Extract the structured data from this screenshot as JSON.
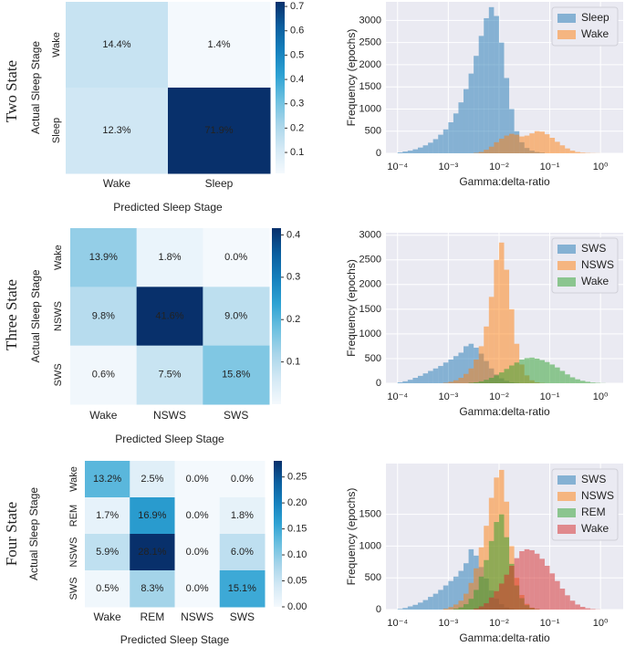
{
  "row_labels": [
    "Two State",
    "Three State",
    "Four State"
  ],
  "chart_data": [
    {
      "type": "heatmap",
      "xlabel": "Predicted Sleep Stage",
      "ylabel": "Actual Sleep Stage",
      "x_categories": [
        "Wake",
        "Sleep"
      ],
      "y_categories": [
        "Wake",
        "Sleep"
      ],
      "values": [
        [
          0.144,
          0.014
        ],
        [
          0.123,
          0.719
        ]
      ],
      "value_labels": [
        [
          "14.4%",
          "1.4%"
        ],
        [
          "12.3%",
          "71.9%"
        ]
      ],
      "clim": [
        0.014,
        0.719
      ],
      "cticks": [
        0.1,
        0.2,
        0.3,
        0.4,
        0.5,
        0.6,
        0.7
      ],
      "colormap": [
        "#f4f9fd",
        "#d4e9f5",
        "#a8d5ea",
        "#6cc0e0",
        "#2ea2d3",
        "#1580bd",
        "#0b5e9e",
        "#08306b"
      ]
    },
    {
      "type": "histogram",
      "xlabel": "Gamma:delta-ratio",
      "ylabel": "Frequency (epochs)",
      "xscale": "log",
      "grid": true,
      "legend": "upper right",
      "bins": [
        0.0001,
        0.0001259,
        0.0001585,
        0.0001995,
        0.0002512,
        0.0003162,
        0.0003981,
        0.0005012,
        0.000631,
        0.0007943,
        0.001,
        0.001259,
        0.001585,
        0.001995,
        0.002512,
        0.003162,
        0.003981,
        0.005012,
        0.00631,
        0.007943,
        0.01,
        0.01259,
        0.01585,
        0.01995,
        0.02512,
        0.03162,
        0.03981,
        0.05012,
        0.0631,
        0.07943,
        0.1,
        0.1259,
        0.1585,
        0.1995,
        0.2512,
        0.3162,
        0.3981,
        0.5012,
        0.631,
        0.7943,
        1,
        1.259
      ],
      "series": [
        {
          "name": "Sleep",
          "color": "#1f77b4",
          "values": [
            20,
            40,
            60,
            90,
            130,
            180,
            240,
            320,
            420,
            540,
            700,
            900,
            1150,
            1450,
            1800,
            2200,
            2650,
            3050,
            3300,
            3100,
            2500,
            1700,
            1000,
            500,
            250,
            120,
            60,
            30,
            15,
            0,
            0,
            0,
            0,
            0,
            0,
            0,
            0,
            0,
            0,
            0,
            0
          ]
        },
        {
          "name": "Wake",
          "color": "#ff7f0e",
          "values": [
            0,
            0,
            0,
            0,
            0,
            0,
            0,
            0,
            0,
            0,
            0,
            0,
            0,
            0,
            0,
            10,
            30,
            80,
            150,
            250,
            330,
            400,
            440,
            420,
            380,
            400,
            450,
            500,
            490,
            430,
            350,
            260,
            180,
            110,
            60,
            30,
            15,
            8,
            4,
            2,
            0
          ]
        }
      ],
      "xlim": [
        5.9e-05,
        2.8
      ],
      "xticks": [
        {
          "value": 0.0001,
          "label": "10⁻⁴"
        },
        {
          "value": 0.001,
          "label": "10⁻³"
        },
        {
          "value": 0.01,
          "label": "10⁻²"
        },
        {
          "value": 0.1,
          "label": "10⁻¹"
        },
        {
          "value": 1,
          "label": "10⁰"
        }
      ],
      "ylim": [
        0,
        3420
      ],
      "yticks": [
        0,
        500,
        1000,
        1500,
        2000,
        2500,
        3000
      ]
    },
    {
      "type": "heatmap",
      "xlabel": "Predicted Sleep Stage",
      "ylabel": "Actual Sleep Stage",
      "x_categories": [
        "Wake",
        "NSWS",
        "SWS"
      ],
      "y_categories": [
        "Wake",
        "NSWS",
        "SWS"
      ],
      "values": [
        [
          0.139,
          0.018,
          0.0
        ],
        [
          0.098,
          0.416,
          0.09
        ],
        [
          0.006,
          0.075,
          0.158
        ]
      ],
      "value_labels": [
        [
          "13.9%",
          "1.8%",
          "0.0%"
        ],
        [
          "9.8%",
          "41.6%",
          "9.0%"
        ],
        [
          "0.6%",
          "7.5%",
          "15.8%"
        ]
      ],
      "clim": [
        0,
        0.416
      ],
      "cticks": [
        0.1,
        0.2,
        0.3,
        0.4
      ],
      "colormap": [
        "#f4f9fd",
        "#d4e9f5",
        "#a8d5ea",
        "#6cc0e0",
        "#2ea2d3",
        "#1580bd",
        "#0b5e9e",
        "#08306b"
      ]
    },
    {
      "type": "histogram",
      "xlabel": "Gamma:delta-ratio",
      "ylabel": "Frequency (epochs)",
      "xscale": "log",
      "grid": true,
      "legend": "upper right",
      "bins": [
        0.0001,
        0.0001259,
        0.0001585,
        0.0001995,
        0.0002512,
        0.0003162,
        0.0003981,
        0.0005012,
        0.000631,
        0.0007943,
        0.001,
        0.001259,
        0.001585,
        0.001995,
        0.002512,
        0.003162,
        0.003981,
        0.005012,
        0.00631,
        0.007943,
        0.01,
        0.01259,
        0.01585,
        0.01995,
        0.02512,
        0.03162,
        0.03981,
        0.05012,
        0.0631,
        0.07943,
        0.1,
        0.1259,
        0.1585,
        0.1995,
        0.2512,
        0.3162,
        0.3981,
        0.5012,
        0.631,
        0.7943,
        1,
        1.259
      ],
      "series": [
        {
          "name": "SWS",
          "color": "#1f77b4",
          "values": [
            20,
            40,
            70,
            110,
            150,
            200,
            250,
            300,
            350,
            420,
            480,
            550,
            620,
            750,
            800,
            720,
            600,
            450,
            300,
            180,
            100,
            50,
            20,
            8,
            0,
            0,
            0,
            0,
            0,
            0,
            0,
            0,
            0,
            0,
            0,
            0,
            0,
            0,
            0,
            0,
            0
          ]
        },
        {
          "name": "NSWS",
          "color": "#ff7f0e",
          "values": [
            0,
            0,
            0,
            0,
            0,
            0,
            0,
            0,
            0,
            10,
            30,
            60,
            110,
            190,
            300,
            480,
            750,
            1150,
            1750,
            2500,
            2850,
            2300,
            1500,
            800,
            380,
            160,
            60,
            20,
            5,
            0,
            0,
            0,
            0,
            0,
            0,
            0,
            0,
            0,
            0,
            0,
            0
          ]
        },
        {
          "name": "Wake",
          "color": "#2ca02c",
          "values": [
            0,
            0,
            0,
            0,
            0,
            0,
            0,
            0,
            0,
            0,
            0,
            0,
            0,
            0,
            10,
            20,
            40,
            70,
            110,
            160,
            220,
            290,
            360,
            420,
            480,
            510,
            520,
            500,
            470,
            430,
            380,
            320,
            250,
            180,
            120,
            80,
            50,
            30,
            15,
            8,
            3
          ]
        }
      ],
      "xlim": [
        5.9e-05,
        2.8
      ],
      "xticks": [
        {
          "value": 0.0001,
          "label": "10⁻⁴"
        },
        {
          "value": 0.001,
          "label": "10⁻³"
        },
        {
          "value": 0.01,
          "label": "10⁻²"
        },
        {
          "value": 0.1,
          "label": "10⁻¹"
        },
        {
          "value": 1,
          "label": "10⁰"
        }
      ],
      "ylim": [
        0,
        3050
      ],
      "yticks": [
        0,
        500,
        1000,
        1500,
        2000,
        2500,
        3000
      ]
    },
    {
      "type": "heatmap",
      "xlabel": "Predicted Sleep Stage",
      "ylabel": "Actual Sleep Stage",
      "x_categories": [
        "Wake",
        "REM",
        "NSWS",
        "SWS"
      ],
      "y_categories": [
        "Wake",
        "REM",
        "NSWS",
        "SWS"
      ],
      "values": [
        [
          0.132,
          0.025,
          0.0,
          0.0
        ],
        [
          0.017,
          0.169,
          0.0,
          0.018
        ],
        [
          0.059,
          0.281,
          0.0,
          0.06
        ],
        [
          0.005,
          0.083,
          0.0,
          0.151
        ]
      ],
      "value_labels": [
        [
          "13.2%",
          "2.5%",
          "0.0%",
          "0.0%"
        ],
        [
          "1.7%",
          "16.9%",
          "0.0%",
          "1.8%"
        ],
        [
          "5.9%",
          "28.1%",
          "0.0%",
          "6.0%"
        ],
        [
          "0.5%",
          "8.3%",
          "0.0%",
          "15.1%"
        ]
      ],
      "clim": [
        0,
        0.281
      ],
      "cticks": [
        {
          "value": 0,
          "label": "0.00"
        },
        {
          "value": 0.05,
          "label": "0.05"
        },
        {
          "value": 0.1,
          "label": "0.10"
        },
        {
          "value": 0.15,
          "label": "0.15"
        },
        {
          "value": 0.2,
          "label": "0.20"
        },
        {
          "value": 0.25,
          "label": "0.25"
        }
      ],
      "colormap": [
        "#f4f9fd",
        "#d4e9f5",
        "#a8d5ea",
        "#6cc0e0",
        "#2ea2d3",
        "#1580bd",
        "#0b5e9e",
        "#08306b"
      ]
    },
    {
      "type": "histogram",
      "xlabel": "Gamma:delta-ratio",
      "ylabel": "Frequency (epochs)",
      "xscale": "log",
      "grid": true,
      "legend": "upper right",
      "bins": [
        0.0001,
        0.0001259,
        0.0001585,
        0.0001995,
        0.0002512,
        0.0003162,
        0.0003981,
        0.0005012,
        0.000631,
        0.0007943,
        0.001,
        0.001259,
        0.001585,
        0.001995,
        0.002512,
        0.003162,
        0.003981,
        0.005012,
        0.00631,
        0.007943,
        0.01,
        0.01259,
        0.01585,
        0.01995,
        0.02512,
        0.03162,
        0.03981,
        0.05012,
        0.0631,
        0.07943,
        0.1,
        0.1259,
        0.1585,
        0.1995,
        0.2512,
        0.3162,
        0.3981,
        0.5012,
        0.631,
        0.7943,
        1,
        1.259
      ],
      "series": [
        {
          "name": "SWS",
          "color": "#1f77b4",
          "values": [
            10,
            25,
            50,
            75,
            110,
            150,
            200,
            250,
            310,
            380,
            450,
            520,
            610,
            730,
            950,
            850,
            670,
            490,
            300,
            170,
            85,
            35,
            12,
            0,
            0,
            0,
            0,
            0,
            0,
            0,
            0,
            0,
            0,
            0,
            0,
            0,
            0,
            0,
            0,
            0,
            0
          ]
        },
        {
          "name": "NSWS",
          "color": "#ff7f0e",
          "values": [
            0,
            0,
            0,
            0,
            0,
            0,
            0,
            0,
            0,
            15,
            40,
            80,
            140,
            250,
            420,
            650,
            980,
            1320,
            1760,
            2080,
            2200,
            1700,
            1000,
            500,
            230,
            90,
            30,
            10,
            0,
            0,
            0,
            0,
            0,
            0,
            0,
            0,
            0,
            0,
            0,
            0,
            0
          ]
        },
        {
          "name": "REM",
          "color": "#2ca02c",
          "values": [
            0,
            0,
            0,
            0,
            0,
            0,
            0,
            0,
            0,
            0,
            0,
            12,
            36,
            85,
            170,
            310,
            520,
            780,
            1080,
            1380,
            1500,
            1140,
            720,
            380,
            180,
            70,
            25,
            6,
            0,
            0,
            0,
            0,
            0,
            0,
            0,
            0,
            0,
            0,
            0,
            0,
            0
          ]
        },
        {
          "name": "Wake",
          "color": "#d62728",
          "values": [
            0,
            0,
            0,
            0,
            0,
            0,
            0,
            0,
            0,
            0,
            0,
            0,
            0,
            0,
            0,
            17,
            50,
            100,
            190,
            290,
            410,
            550,
            690,
            810,
            920,
            950,
            935,
            880,
            800,
            690,
            570,
            450,
            330,
            225,
            140,
            80,
            43,
            20,
            9,
            3,
            0
          ]
        }
      ],
      "xlim": [
        5.9e-05,
        2.8
      ],
      "xticks": [
        {
          "value": 0.0001,
          "label": "10⁻⁴"
        },
        {
          "value": 0.001,
          "label": "10⁻³"
        },
        {
          "value": 0.01,
          "label": "10⁻²"
        },
        {
          "value": 0.1,
          "label": "10⁻¹"
        },
        {
          "value": 1,
          "label": "10⁰"
        }
      ],
      "ylim": [
        0,
        2300
      ],
      "yticks": [
        0,
        500,
        1000,
        1500
      ]
    }
  ]
}
